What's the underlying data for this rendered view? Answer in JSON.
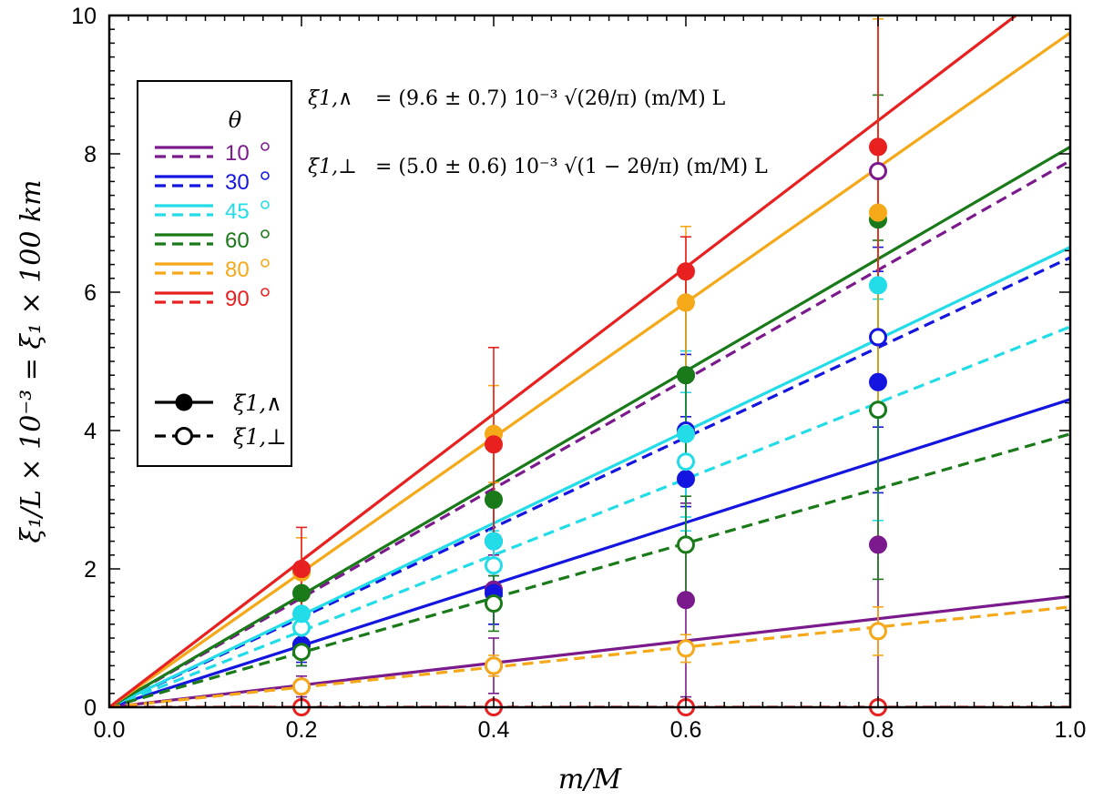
{
  "chart_data": {
    "type": "scatter",
    "xlabel": "m/M",
    "ylabel": "ξ₁/L × 10⁻³ = ξ₁ × 100 km",
    "xlim": [
      0,
      1
    ],
    "ylim": [
      0,
      10
    ],
    "x_ticks": [
      0,
      0.2,
      0.4,
      0.6,
      0.8,
      1.0
    ],
    "x_tick_labels": [
      "0.0",
      "0.2",
      "0.4",
      "0.6",
      "0.8",
      "1.0"
    ],
    "y_ticks": [
      0,
      2,
      4,
      6,
      8,
      10
    ],
    "y_tick_labels": [
      "0",
      "2",
      "4",
      "6",
      "8",
      "10"
    ],
    "grid": false,
    "legend_position": "top-left",
    "legend_title": "θ",
    "x": [
      0.2,
      0.4,
      0.6,
      0.8
    ],
    "equations": {
      "parallel_lhs": "ξ1,∧",
      "parallel_rhs": "= (9.6 ± 0.7) 10⁻³ √(2θ/π) (m/M) L",
      "perp_lhs": "ξ1,⊥",
      "perp_rhs": "= (5.0 ± 0.6) 10⁻³ √(1 − 2θ/π) (m/M) L"
    },
    "marker_legend": {
      "parallel_label": "ξ1,∧",
      "perp_label": "ξ1,⊥"
    },
    "series": [
      {
        "name": "10°",
        "label": "10",
        "color": "#7B1A8C",
        "fit_parallel_slope": 1.6,
        "fit_perp_slope": 7.9,
        "parallel": [
          0.9,
          1.7,
          1.55,
          2.35
        ],
        "parallel_err": [
          0.3,
          0.5,
          1.4,
          2.3
        ],
        "perp": [
          0.3,
          0.6,
          4.8,
          7.75
        ],
        "perp_err": [
          0.15,
          0.4,
          1.4,
          2.3
        ]
      },
      {
        "name": "30°",
        "label": "30",
        "color": "#1515E0",
        "fit_parallel_slope": 4.45,
        "fit_perp_slope": 6.5,
        "parallel": [
          0.9,
          1.65,
          3.3,
          4.7
        ],
        "parallel_err": [
          0.3,
          0.45,
          0.9,
          1.6
        ],
        "perp": [
          0.9,
          2.4,
          4.0,
          5.35
        ],
        "perp_err": [
          0.25,
          0.5,
          1.1,
          1.3
        ]
      },
      {
        "name": "45°",
        "label": "45",
        "color": "#22DCE8",
        "fit_parallel_slope": 6.65,
        "fit_perp_slope": 5.5,
        "parallel": [
          1.35,
          2.4,
          3.95,
          6.1
        ],
        "parallel_err": [
          0.35,
          0.6,
          1.2,
          1.7
        ],
        "perp": [
          1.15,
          2.05,
          3.55,
          4.3
        ],
        "perp_err": [
          0.3,
          0.5,
          1.0,
          1.6
        ]
      },
      {
        "name": "60°",
        "label": "60",
        "color": "#1A7A1A",
        "fit_parallel_slope": 8.1,
        "fit_perp_slope": 3.95,
        "parallel": [
          1.65,
          3.0,
          4.8,
          7.05
        ],
        "parallel_err": [
          0.4,
          0.7,
          1.4,
          1.8
        ],
        "perp": [
          0.8,
          1.5,
          2.35,
          4.3
        ],
        "perp_err": [
          0.2,
          0.4,
          0.7,
          2.45
        ]
      },
      {
        "name": "80°",
        "label": "80",
        "color": "#F5A818",
        "fit_parallel_slope": 9.75,
        "fit_perp_slope": 1.45,
        "parallel": [
          1.95,
          3.95,
          5.85,
          7.15
        ],
        "parallel_err": [
          0.5,
          0.7,
          1.1,
          2.8
        ],
        "perp": [
          0.3,
          0.6,
          0.85,
          1.1
        ],
        "perp_err": [
          0.1,
          0.15,
          0.2,
          0.35
        ]
      },
      {
        "name": "90°",
        "label": "90",
        "color": "#E82020",
        "fit_parallel_slope": 10.6,
        "fit_perp_slope": 0.0,
        "parallel": [
          2.0,
          3.8,
          6.3,
          8.1
        ],
        "parallel_err": [
          0.6,
          1.4,
          0.5,
          1.9
        ],
        "perp": [
          0.0,
          0.0,
          0.0,
          0.0
        ],
        "perp_err": [
          0,
          0,
          0,
          0
        ]
      }
    ]
  }
}
